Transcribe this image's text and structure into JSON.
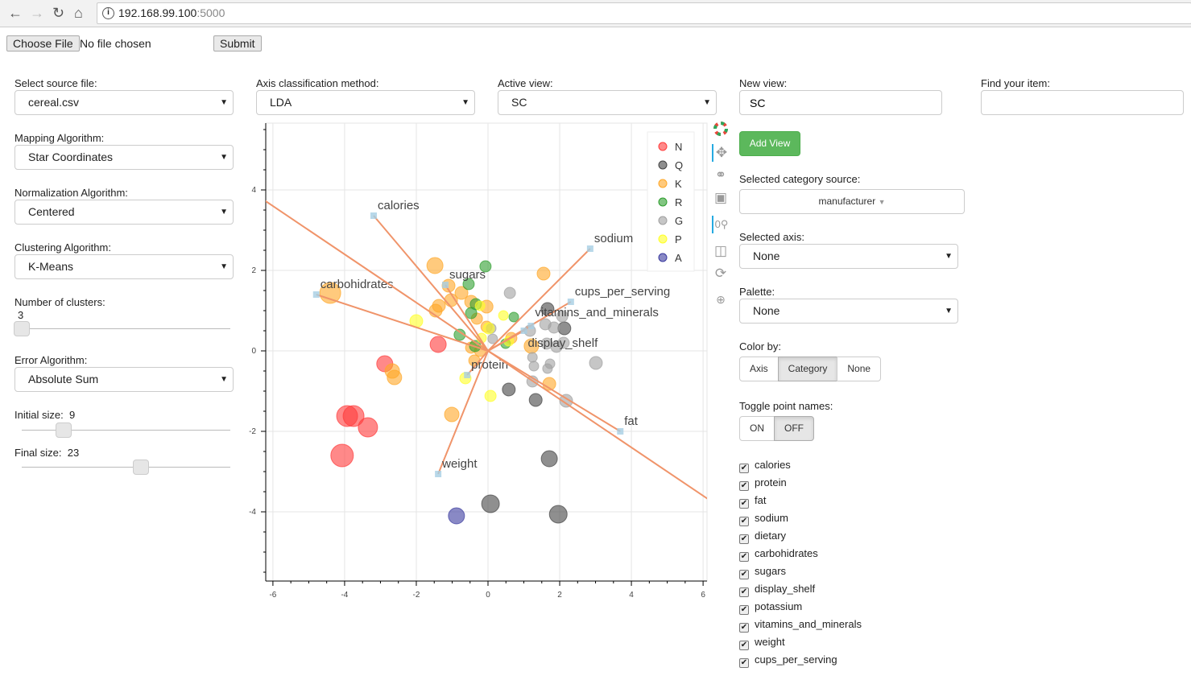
{
  "browser": {
    "url_host": "192.168.99.100",
    "url_port": ":5000"
  },
  "upload": {
    "choose_label": "Choose File",
    "no_file": "No file chosen",
    "submit_label": "Submit"
  },
  "left": {
    "source_label": "Select source file:",
    "source_value": "cereal.csv",
    "mapping_label": "Mapping Algorithm:",
    "mapping_value": "Star Coordinates",
    "norm_label": "Normalization Algorithm:",
    "norm_value": "Centered",
    "cluster_label": "Clustering Algorithm:",
    "cluster_value": "K-Means",
    "nclusters_label": "Number of clusters:",
    "nclusters_value": "3",
    "nclusters_fraction": 0.0,
    "error_label": "Error Algorithm:",
    "error_value": "Absolute Sum",
    "initial_label": "Initial size:",
    "initial_value": "9",
    "initial_fraction": 0.2,
    "final_label": "Final size:",
    "final_value": "23",
    "final_fraction": 0.57
  },
  "top": {
    "axis_method_label": "Axis classification method:",
    "axis_method_value": "LDA",
    "active_view_label": "Active view:",
    "active_view_value": "SC",
    "new_view_label": "New view:",
    "new_view_value": "SC",
    "find_label": "Find your item:",
    "find_value": ""
  },
  "right": {
    "add_view": "Add View",
    "cat_source_label": "Selected category source:",
    "cat_source_value": "manufacturer",
    "sel_axis_label": "Selected axis:",
    "sel_axis_value": "None",
    "palette_label": "Palette:",
    "palette_value": "None",
    "color_by_label": "Color by:",
    "color_by_options": [
      "Axis",
      "Category",
      "None"
    ],
    "color_by_selected": "Category",
    "toggle_label": "Toggle point names:",
    "toggle_options": [
      "ON",
      "OFF"
    ],
    "toggle_selected": "OFF",
    "attributes": [
      "calories",
      "protein",
      "fat",
      "sodium",
      "dietary",
      "carbohidrates",
      "sugars",
      "display_shelf",
      "potassium",
      "vitamins_and_minerals",
      "weight",
      "cups_per_serving"
    ]
  },
  "toolbar": [
    "bokeh-logo-icon",
    "pan-icon",
    "lasso-select-icon",
    "box-select-icon",
    "point-draw-icon",
    "save-icon",
    "reset-icon",
    "hover-icon"
  ],
  "chart_data": {
    "type": "scatter",
    "xlim": [
      -6.2,
      6.11
    ],
    "ylim": [
      -5.72,
      5.66
    ],
    "xticks": [
      -6,
      -4,
      -2,
      0,
      2,
      4,
      6
    ],
    "yticks": [
      -4,
      -2,
      0,
      2,
      4
    ],
    "grid": true,
    "legend_position": "top-right",
    "categories": [
      {
        "name": "N",
        "color": "#ff3b3b"
      },
      {
        "name": "Q",
        "color": "#444444"
      },
      {
        "name": "K",
        "color": "#ffa726"
      },
      {
        "name": "R",
        "color": "#2e9e2e"
      },
      {
        "name": "G",
        "color": "#a0a0a0"
      },
      {
        "name": "P",
        "color": "#ffff26"
      },
      {
        "name": "A",
        "color": "#3a3a9e"
      }
    ],
    "axes": [
      {
        "name": "calories",
        "x": -3.19,
        "y": 3.36,
        "label": true
      },
      {
        "name": "carbohidrates",
        "x": -4.79,
        "y": 1.4,
        "label": true
      },
      {
        "name": "sugars",
        "x": -1.19,
        "y": 1.64,
        "label": true
      },
      {
        "name": "sodium",
        "x": 2.85,
        "y": 2.54,
        "label": true
      },
      {
        "name": "cups_per_serving",
        "x": 2.31,
        "y": 1.22,
        "label": true
      },
      {
        "name": "vitamins_and_minerals",
        "x": 1.2,
        "y": 0.62,
        "label": true
      },
      {
        "name": "display_shelf",
        "x": 1.0,
        "y": 0.5,
        "label": true
      },
      {
        "name": "fat",
        "x": 3.69,
        "y": -2.0,
        "label": true
      },
      {
        "name": "weight",
        "x": -1.39,
        "y": -3.06,
        "label": true
      },
      {
        "name": "protein",
        "x": -0.58,
        "y": -0.6,
        "label": true
      },
      {
        "name": "potassium",
        "x": -7.5,
        "y": 4.5,
        "label": false
      },
      {
        "name": "dietary",
        "x": 7.5,
        "y": -4.5,
        "label": false
      }
    ],
    "points": [
      {
        "c": "N",
        "x": -1.39,
        "y": 0.16,
        "s": 10
      },
      {
        "c": "N",
        "x": -2.88,
        "y": -0.32,
        "s": 10
      },
      {
        "c": "N",
        "x": -3.93,
        "y": -1.62,
        "s": 13
      },
      {
        "c": "N",
        "x": -3.75,
        "y": -1.62,
        "s": 13
      },
      {
        "c": "N",
        "x": -3.35,
        "y": -1.9,
        "s": 12
      },
      {
        "c": "N",
        "x": -4.07,
        "y": -2.6,
        "s": 14
      },
      {
        "c": "Q",
        "x": 1.66,
        "y": 1.04,
        "s": 8
      },
      {
        "c": "Q",
        "x": 2.13,
        "y": 0.56,
        "s": 8
      },
      {
        "c": "Q",
        "x": 0.58,
        "y": -0.96,
        "s": 8
      },
      {
        "c": "Q",
        "x": 1.33,
        "y": -1.22,
        "s": 8
      },
      {
        "c": "Q",
        "x": 1.71,
        "y": -2.68,
        "s": 10
      },
      {
        "c": "Q",
        "x": 0.07,
        "y": -3.8,
        "s": 11
      },
      {
        "c": "Q",
        "x": 1.96,
        "y": -4.06,
        "s": 11
      },
      {
        "c": "K",
        "x": -1.48,
        "y": 2.12,
        "s": 10
      },
      {
        "c": "K",
        "x": 1.55,
        "y": 1.92,
        "s": 8
      },
      {
        "c": "K",
        "x": -4.4,
        "y": 1.44,
        "s": 13
      },
      {
        "c": "K",
        "x": -1.1,
        "y": 1.62,
        "s": 8
      },
      {
        "c": "K",
        "x": -0.74,
        "y": 1.44,
        "s": 8
      },
      {
        "c": "K",
        "x": -1.03,
        "y": 1.26,
        "s": 8
      },
      {
        "c": "K",
        "x": -0.47,
        "y": 1.22,
        "s": 8
      },
      {
        "c": "K",
        "x": -0.04,
        "y": 1.1,
        "s": 8
      },
      {
        "c": "K",
        "x": -1.46,
        "y": 1.0,
        "s": 8
      },
      {
        "c": "K",
        "x": -1.37,
        "y": 1.12,
        "s": 8
      },
      {
        "c": "K",
        "x": -0.31,
        "y": 0.8,
        "s": 7
      },
      {
        "c": "K",
        "x": -0.04,
        "y": 0.6,
        "s": 7
      },
      {
        "c": "K",
        "x": -2.67,
        "y": -0.5,
        "s": 9
      },
      {
        "c": "K",
        "x": -2.61,
        "y": -0.66,
        "s": 9
      },
      {
        "c": "K",
        "x": -1.01,
        "y": -1.58,
        "s": 9
      },
      {
        "c": "K",
        "x": 1.21,
        "y": 0.12,
        "s": 9
      },
      {
        "c": "K",
        "x": 1.71,
        "y": -0.82,
        "s": 8
      },
      {
        "c": "K",
        "x": -0.47,
        "y": 0.08,
        "s": 7
      },
      {
        "c": "K",
        "x": -0.38,
        "y": -0.24,
        "s": 7
      },
      {
        "c": "K",
        "x": -0.22,
        "y": 0.0,
        "s": 7
      },
      {
        "c": "K",
        "x": 0.65,
        "y": 0.32,
        "s": 7
      },
      {
        "c": "R",
        "x": -0.07,
        "y": 2.1,
        "s": 7
      },
      {
        "c": "R",
        "x": -0.54,
        "y": 1.66,
        "s": 7
      },
      {
        "c": "R",
        "x": -0.34,
        "y": 1.16,
        "s": 7
      },
      {
        "c": "R",
        "x": -0.47,
        "y": 0.94,
        "s": 7
      },
      {
        "c": "R",
        "x": -0.79,
        "y": 0.4,
        "s": 7
      },
      {
        "c": "R",
        "x": 0.72,
        "y": 0.84,
        "s": 6
      },
      {
        "c": "R",
        "x": -0.36,
        "y": 0.12,
        "s": 7
      },
      {
        "c": "R",
        "x": 0.49,
        "y": 0.18,
        "s": 6
      },
      {
        "c": "G",
        "x": 0.61,
        "y": 1.44,
        "s": 7
      },
      {
        "c": "G",
        "x": 2.07,
        "y": 0.86,
        "s": 7
      },
      {
        "c": "G",
        "x": 1.17,
        "y": 0.5,
        "s": 7
      },
      {
        "c": "G",
        "x": 1.6,
        "y": 0.66,
        "s": 7
      },
      {
        "c": "G",
        "x": 1.84,
        "y": 0.58,
        "s": 7
      },
      {
        "c": "G",
        "x": 1.64,
        "y": 0.18,
        "s": 7
      },
      {
        "c": "G",
        "x": 1.91,
        "y": 0.1,
        "s": 7
      },
      {
        "c": "G",
        "x": 2.11,
        "y": 0.2,
        "s": 7
      },
      {
        "c": "G",
        "x": 1.24,
        "y": -0.16,
        "s": 6
      },
      {
        "c": "G",
        "x": 1.73,
        "y": -0.32,
        "s": 6
      },
      {
        "c": "G",
        "x": 1.28,
        "y": -0.38,
        "s": 6
      },
      {
        "c": "G",
        "x": 1.66,
        "y": -0.44,
        "s": 6
      },
      {
        "c": "G",
        "x": 1.24,
        "y": -0.76,
        "s": 7
      },
      {
        "c": "G",
        "x": 3.01,
        "y": -0.3,
        "s": 8
      },
      {
        "c": "G",
        "x": 2.18,
        "y": -1.24,
        "s": 8
      },
      {
        "c": "G",
        "x": 0.09,
        "y": 0.56,
        "s": 6
      },
      {
        "c": "G",
        "x": 0.13,
        "y": 0.3,
        "s": 6
      },
      {
        "c": "P",
        "x": -2.0,
        "y": 0.74,
        "s": 8
      },
      {
        "c": "P",
        "x": 0.43,
        "y": 0.88,
        "s": 6
      },
      {
        "c": "P",
        "x": -0.22,
        "y": 1.12,
        "s": 6
      },
      {
        "c": "P",
        "x": 0.02,
        "y": 0.56,
        "s": 7
      },
      {
        "c": "P",
        "x": -0.18,
        "y": 0.32,
        "s": 6
      },
      {
        "c": "P",
        "x": -0.63,
        "y": -0.68,
        "s": 7
      },
      {
        "c": "P",
        "x": 0.07,
        "y": -1.12,
        "s": 7
      },
      {
        "c": "P",
        "x": 0.58,
        "y": 0.24,
        "s": 6
      },
      {
        "c": "A",
        "x": -0.88,
        "y": -4.1,
        "s": 10
      }
    ]
  }
}
